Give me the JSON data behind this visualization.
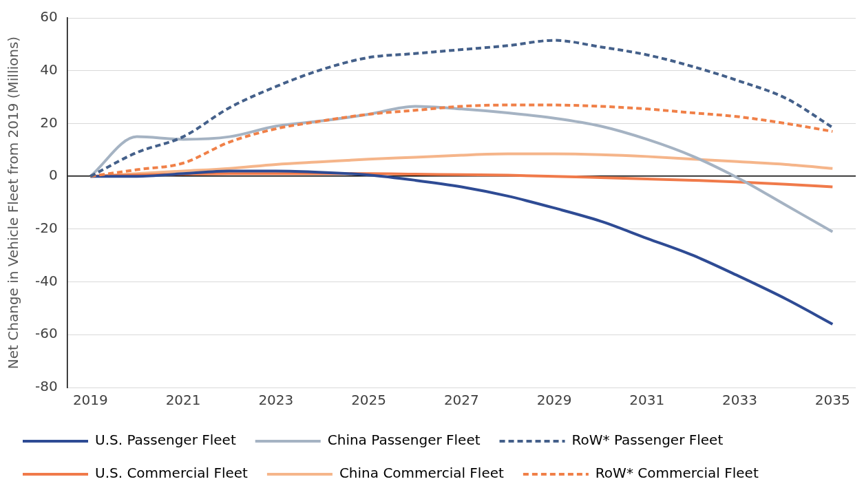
{
  "chart_data": {
    "type": "line",
    "ylabel": "Net Change in Vehicle Fleet from 2019 (Millions)",
    "categories": [
      "2019",
      null,
      "2021",
      null,
      "2023",
      null,
      "2025",
      null,
      "2027",
      null,
      "2029",
      null,
      "2031",
      null,
      "2033",
      null,
      "2035"
    ],
    "ylim": [
      -80,
      60
    ],
    "yticks": [
      -80,
      -60,
      -40,
      -20,
      0,
      20,
      40,
      60
    ],
    "grid": "y",
    "legend": "bottom",
    "marker": "none",
    "series": [
      {
        "name": "U.S. Passenger Fleet",
        "color": "#2e4b94",
        "line_style": "solid",
        "values": [
          0,
          0,
          1,
          2,
          2,
          1.5,
          0.5,
          -1.5,
          -4,
          -7.5,
          -12,
          -17,
          -23.5,
          -30,
          -38,
          -46.5,
          -56
        ]
      },
      {
        "name": "China Passenger Fleet",
        "color": "#a5b3c3",
        "line_style": "solid",
        "values": [
          0,
          15,
          14,
          15,
          19,
          21,
          23.5,
          26.5,
          25.5,
          24,
          22,
          19,
          14,
          7.5,
          -1,
          -11,
          -21
        ]
      },
      {
        "name": "RoW* Passenger Fleet",
        "color": "#44608a",
        "line_style": "dashed",
        "values": [
          0,
          9,
          15,
          26,
          34,
          40.5,
          45,
          46.5,
          48,
          49.5,
          51.5,
          49,
          46,
          41.5,
          36,
          29.5,
          18.5
        ]
      },
      {
        "name": "U.S. Commercial Fleet",
        "color": "#f07a4a",
        "line_style": "solid",
        "values": [
          0,
          0.5,
          0.8,
          1,
          1,
          1,
          1,
          0.8,
          0.6,
          0.4,
          0,
          -0.5,
          -1,
          -1.5,
          -2.2,
          -3,
          -4
        ]
      },
      {
        "name": "China Commercial Fleet",
        "color": "#f5b58a",
        "line_style": "solid",
        "values": [
          0,
          1,
          2,
          3,
          4.5,
          5.5,
          6.5,
          7.2,
          8,
          8.5,
          8.5,
          8.2,
          7.5,
          6.5,
          5.5,
          4.5,
          3
        ]
      },
      {
        "name": "RoW* Commercial Fleet",
        "color": "#f08048",
        "line_style": "dashed",
        "values": [
          0,
          2.5,
          5,
          13,
          18,
          21,
          23.5,
          25,
          26.5,
          27,
          27,
          26.5,
          25.5,
          24,
          22.5,
          20,
          17
        ]
      }
    ]
  }
}
